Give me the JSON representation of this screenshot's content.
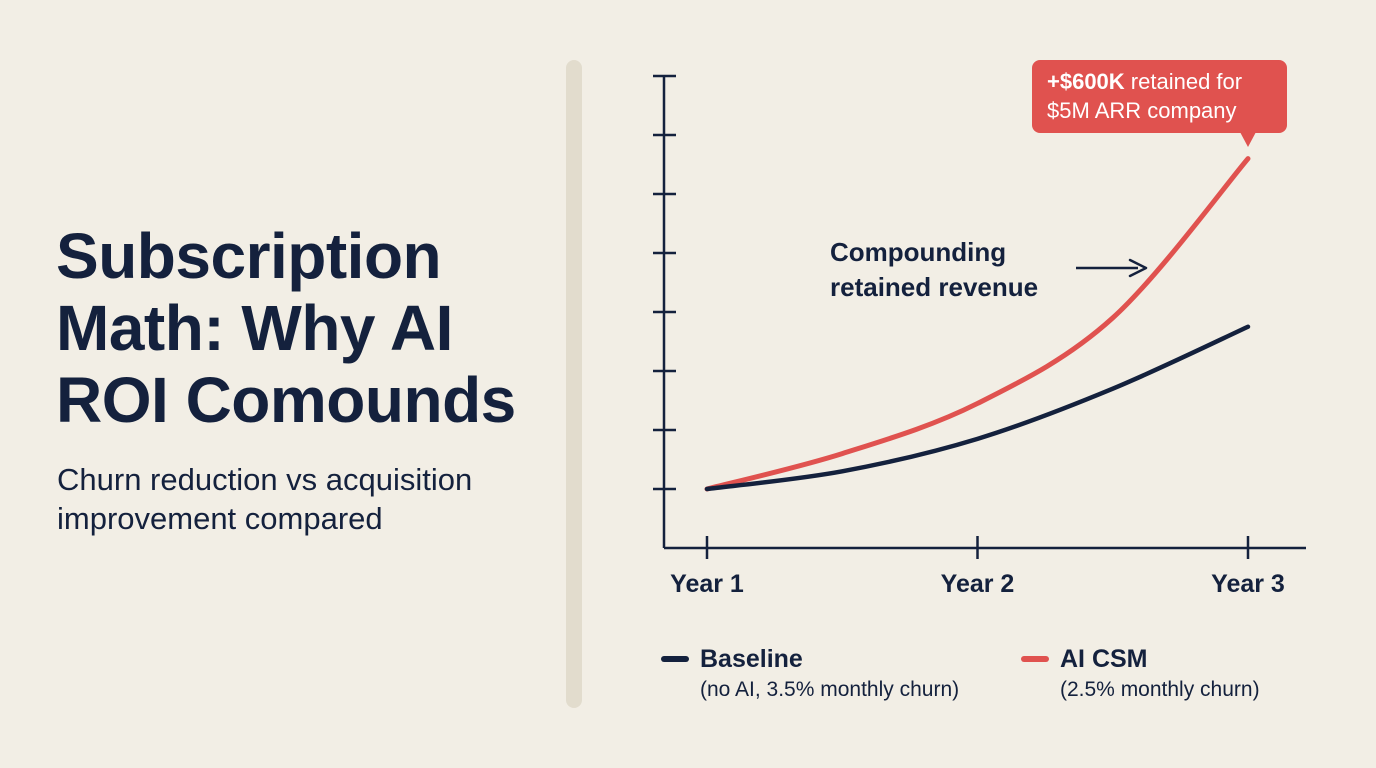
{
  "title": "Subscription Math: Why AI ROI Comounds",
  "subtitle": "Churn reduction vs acquisition improvement compared",
  "colors": {
    "background": "#f2eee5",
    "baseline": "#14213d",
    "ai_csm": "#e0524f",
    "divider": "#e2dccd"
  },
  "chart_data": {
    "type": "line",
    "categories": [
      "Year 1",
      "Year 2",
      "Year 3"
    ],
    "x": [
      1,
      1.5,
      2,
      2.5,
      3
    ],
    "xlim": [
      0.8,
      3.2
    ],
    "ylim": [
      0,
      8
    ],
    "y_tick_count": 8,
    "grid": false,
    "legend_position": "bottom",
    "series": [
      {
        "name": "Baseline",
        "description": "(no AI, 3.5% monthly churn)",
        "color": "#14213d",
        "values": [
          1,
          1.3,
          1.85,
          2.7,
          3.75
        ]
      },
      {
        "name": "AI CSM",
        "description": "(2.5% monthly churn)",
        "color": "#e0524f",
        "values": [
          1,
          1.6,
          2.45,
          3.9,
          6.6
        ]
      }
    ],
    "annotations": [
      {
        "text_lines": [
          "Compounding",
          "retained revenue"
        ],
        "arrow": "right"
      },
      {
        "text_lines": [
          "+$600K retained for",
          "$5M ARR company"
        ],
        "highlight": "+$600K",
        "style": "callout"
      }
    ]
  }
}
